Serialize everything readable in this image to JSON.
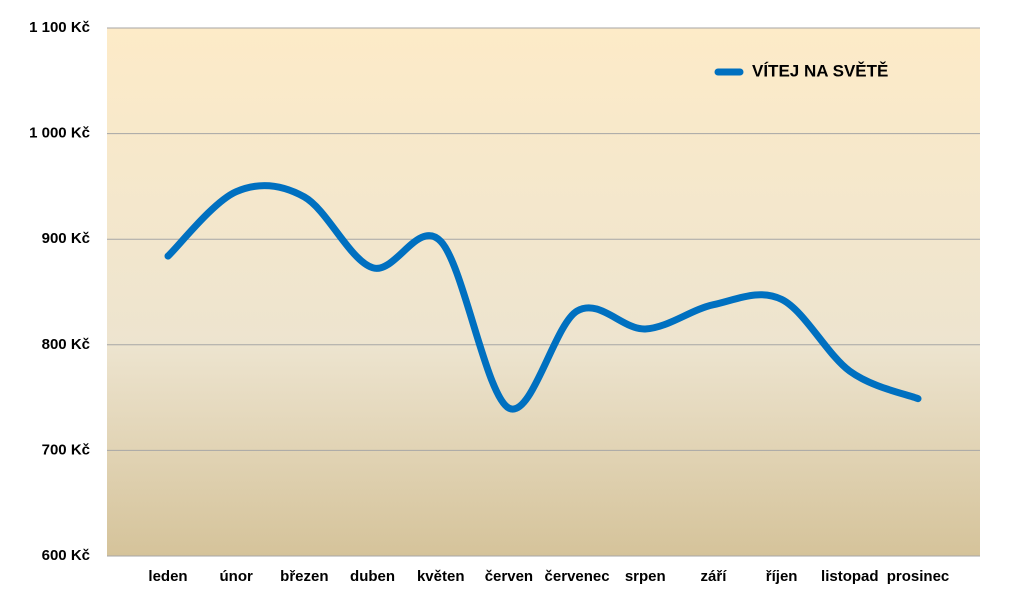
{
  "chart_data": {
    "type": "line",
    "categories": [
      "leden",
      "únor",
      "březen",
      "duben",
      "květen",
      "červen",
      "červenec",
      "srpen",
      "září",
      "říjen",
      "listopad",
      "prosinec"
    ],
    "series": [
      {
        "name": "VÍTEJ NA SVĚTĚ",
        "color": "#0070c0",
        "values": [
          884,
          945,
          940,
          873,
          898,
          740,
          832,
          815,
          838,
          843,
          775,
          749
        ]
      }
    ],
    "ylim": [
      600,
      1100
    ],
    "yticks": [
      {
        "value": 600,
        "label": "600 Kč"
      },
      {
        "value": 700,
        "label": "700 Kč"
      },
      {
        "value": 800,
        "label": "800 Kč"
      },
      {
        "value": 900,
        "label": "900 Kč"
      },
      {
        "value": 1000,
        "label": "1 000 Kč"
      },
      {
        "value": 1100,
        "label": "1 100 Kč"
      }
    ],
    "grid": true,
    "legend": "top-right",
    "smooth": true
  }
}
